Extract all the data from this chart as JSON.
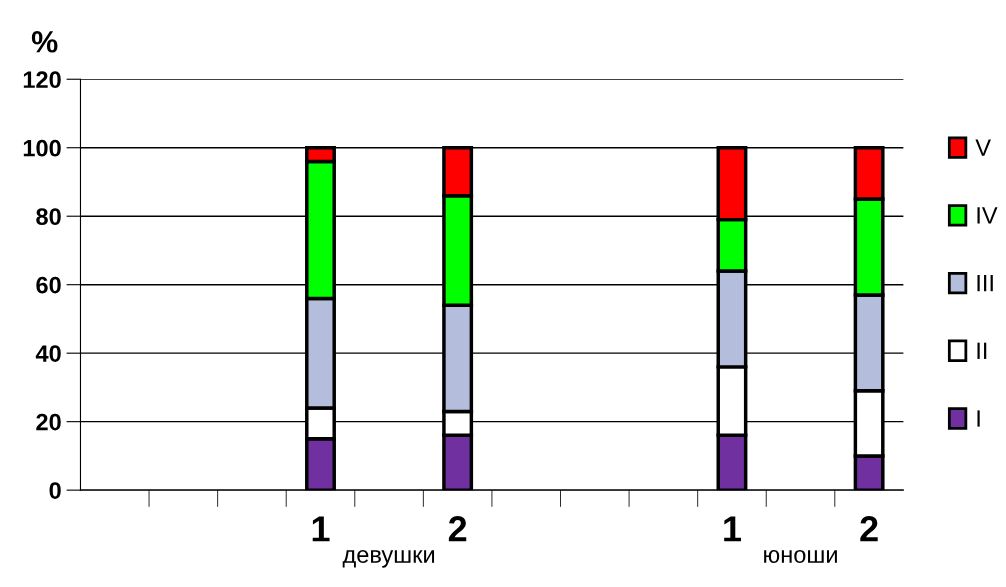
{
  "chart_data": {
    "type": "bar",
    "stacked": true,
    "ylabel": "%",
    "categories": [
      null,
      null,
      null,
      "1",
      null,
      "2",
      null,
      null,
      null,
      "1",
      null,
      "2"
    ],
    "series": [
      {
        "name": "I",
        "color": "#7030a0",
        "values": [
          null,
          null,
          null,
          15,
          null,
          16,
          null,
          null,
          null,
          16,
          null,
          10
        ]
      },
      {
        "name": "II",
        "color": "#ffffff",
        "values": [
          null,
          null,
          null,
          9,
          null,
          7,
          null,
          null,
          null,
          20,
          null,
          19
        ]
      },
      {
        "name": "III",
        "color": "#b4bedc",
        "values": [
          null,
          null,
          null,
          32,
          null,
          31,
          null,
          null,
          null,
          28,
          null,
          28
        ]
      },
      {
        "name": "IV",
        "color": "#00ff00",
        "values": [
          null,
          null,
          null,
          40,
          null,
          32,
          null,
          null,
          null,
          15,
          null,
          28
        ]
      },
      {
        "name": "V",
        "color": "#ff0000",
        "values": [
          null,
          null,
          null,
          4,
          null,
          14,
          null,
          null,
          null,
          21,
          null,
          15
        ]
      }
    ],
    "ylim": [
      0,
      120
    ],
    "yticks": [
      0,
      20,
      40,
      60,
      80,
      100,
      120
    ],
    "grid": "y",
    "legend": "right",
    "annotations": [
      "девушки",
      "юноши"
    ]
  }
}
